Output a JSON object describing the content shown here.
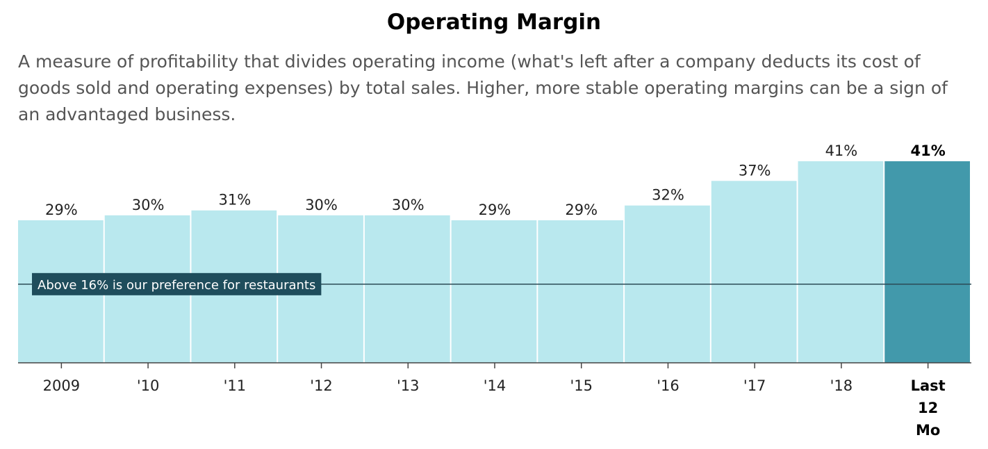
{
  "title": "Operating Margin",
  "description": "A measure of profitability that divides operating income (what's left after a company deducts its cost of goods sold and operating expenses) by total sales. Higher, more stable operating margins can be a sign of an advantaged business.",
  "chart_data": {
    "type": "bar",
    "categories": [
      "2009",
      "'10",
      "'11",
      "'12",
      "'13",
      "'14",
      "'15",
      "'16",
      "'17",
      "'18",
      "Last 12 Mo"
    ],
    "values": [
      29,
      30,
      31,
      30,
      30,
      29,
      29,
      32,
      37,
      41,
      41
    ],
    "value_labels": [
      "29%",
      "30%",
      "31%",
      "30%",
      "30%",
      "29%",
      "29%",
      "32%",
      "37%",
      "41%",
      "41%"
    ],
    "highlight_index": 10,
    "ylim": [
      0,
      41
    ],
    "reference_line": {
      "value": 16,
      "label": "Above 16% is our preference for restaurants"
    },
    "colors": {
      "bar": "#b9e8ee",
      "highlight": "#4299ab",
      "reference_label_bg": "#1f4d5c",
      "reference_line": "#2b4a55"
    },
    "grid": false
  }
}
